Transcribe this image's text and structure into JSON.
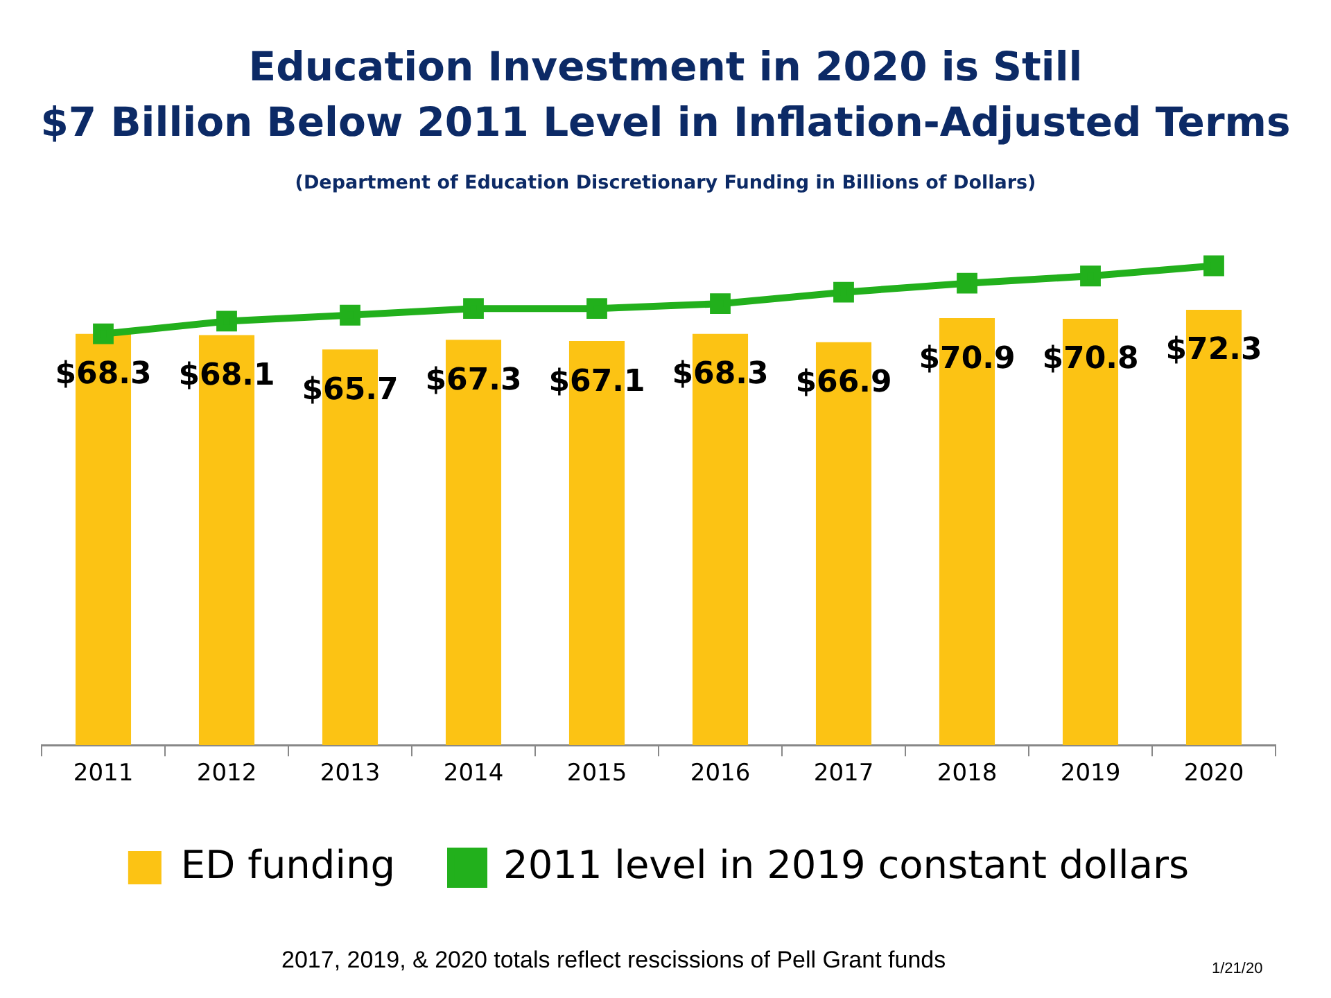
{
  "chart_data": {
    "type": "bar",
    "title": "Education Investment in 2020 is Still\n$7 Billion Below 2011 Level in Inflation-Adjusted Terms",
    "subtitle": "(Department of Education Discretionary Funding in Billions of Dollars)",
    "categories": [
      "2011",
      "2012",
      "2013",
      "2014",
      "2015",
      "2016",
      "2017",
      "2018",
      "2019",
      "2020"
    ],
    "series": [
      {
        "name": "ED funding",
        "color": "#fcc314",
        "values": [
          68.3,
          68.1,
          65.7,
          67.3,
          67.1,
          68.3,
          66.9,
          70.9,
          70.8,
          72.3
        ],
        "value_labels": [
          "$68.3",
          "$68.1",
          "$65.7",
          "$67.3",
          "$67.1",
          "$68.3",
          "$66.9",
          "$70.9",
          "$70.8",
          "$72.3"
        ]
      },
      {
        "name": "2011 level in 2019 constant dollars",
        "type": "line",
        "color": "#22b01c",
        "marker": "square",
        "values": [
          68.3,
          70.4,
          71.4,
          72.5,
          72.5,
          73.3,
          75.2,
          76.7,
          77.9,
          79.6
        ]
      }
    ],
    "legend": "bottom",
    "grid": false,
    "tick_labels": "x",
    "annotations": [
      "2017, 2019, & 2020 totals reflect rescissions of Pell Grant funds",
      "1/21/20"
    ]
  }
}
